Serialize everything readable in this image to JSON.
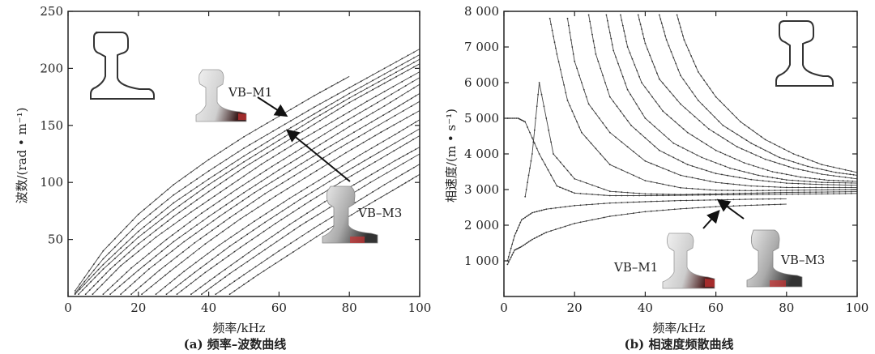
{
  "chart_data": [
    {
      "type": "scatter",
      "panel_label": "(a) 频率–波数曲线",
      "xlabel": "频率/kHz",
      "ylabel": "波数/(rad • m⁻¹)",
      "xlim": [
        0,
        100
      ],
      "ylim": [
        0,
        250
      ],
      "xticks": [
        "0",
        "20",
        "40",
        "60",
        "80",
        "100"
      ],
      "yticks": [
        "50",
        "100",
        "150",
        "200",
        "250"
      ],
      "xtick_values": [
        0,
        20,
        40,
        60,
        80,
        100
      ],
      "ytick_values": [
        50,
        100,
        150,
        200,
        250
      ],
      "grid": false,
      "annotations": [
        "VB–M1",
        "VB–M3"
      ],
      "annotation_points": [
        [
          62,
          162
        ],
        [
          63,
          146
        ]
      ],
      "series": [
        {
          "x": [
            2,
            10,
            20,
            30,
            40,
            50,
            60,
            70,
            80
          ],
          "y": [
            5,
            40,
            72,
            98,
            120,
            140,
            158,
            176,
            193
          ]
        },
        {
          "x": [
            2,
            10,
            20,
            30,
            40,
            50,
            60,
            70,
            80,
            90,
            100
          ],
          "y": [
            3,
            33,
            64,
            89,
            110,
            130,
            148,
            166,
            183,
            200,
            217
          ]
        },
        {
          "x": [
            2,
            10,
            20,
            30,
            40,
            50,
            60,
            70,
            80,
            90,
            100
          ],
          "y": [
            2,
            28,
            57,
            82,
            103,
            123,
            142,
            160,
            178,
            195,
            212
          ]
        },
        {
          "x": [
            3,
            10,
            20,
            30,
            40,
            50,
            60,
            70,
            80,
            90,
            100
          ],
          "y": [
            2,
            24,
            52,
            76,
            98,
            118,
            137,
            156,
            174,
            191,
            208
          ]
        },
        {
          "x": [
            5,
            12,
            20,
            30,
            40,
            50,
            60,
            70,
            80,
            90,
            100
          ],
          "y": [
            2,
            24,
            46,
            70,
            92,
            113,
            132,
            151,
            170,
            187,
            204
          ]
        },
        {
          "x": [
            7,
            15,
            25,
            35,
            45,
            55,
            65,
            75,
            85,
            100
          ],
          "y": [
            2,
            27,
            52,
            74,
            95,
            116,
            135,
            153,
            171,
            197
          ]
        },
        {
          "x": [
            10,
            18,
            28,
            38,
            48,
            58,
            68,
            78,
            88,
            100
          ],
          "y": [
            2,
            25,
            50,
            73,
            94,
            114,
            133,
            152,
            170,
            192
          ]
        },
        {
          "x": [
            12,
            20,
            30,
            40,
            50,
            60,
            70,
            80,
            90,
            100
          ],
          "y": [
            2,
            23,
            48,
            70,
            91,
            111,
            130,
            149,
            167,
            186
          ]
        },
        {
          "x": [
            15,
            23,
            33,
            43,
            53,
            63,
            73,
            83,
            93,
            100
          ],
          "y": [
            2,
            24,
            48,
            70,
            91,
            110,
            129,
            147,
            165,
            178
          ]
        },
        {
          "x": [
            18,
            26,
            36,
            46,
            56,
            66,
            76,
            86,
            100
          ],
          "y": [
            2,
            23,
            47,
            69,
            90,
            109,
            128,
            146,
            171
          ]
        },
        {
          "x": [
            21,
            29,
            39,
            49,
            59,
            69,
            79,
            89,
            100
          ],
          "y": [
            2,
            22,
            46,
            68,
            88,
            107,
            126,
            144,
            163
          ]
        },
        {
          "x": [
            25,
            33,
            43,
            53,
            63,
            73,
            83,
            93,
            100
          ],
          "y": [
            2,
            22,
            45,
            66,
            86,
            105,
            124,
            142,
            155
          ]
        },
        {
          "x": [
            28,
            36,
            46,
            56,
            66,
            76,
            86,
            100
          ],
          "y": [
            2,
            21,
            44,
            65,
            85,
            104,
            122,
            147
          ]
        },
        {
          "x": [
            31,
            39,
            49,
            59,
            69,
            79,
            89,
            100
          ],
          "y": [
            2,
            21,
            43,
            64,
            84,
            103,
            121,
            141
          ]
        },
        {
          "x": [
            35,
            43,
            53,
            63,
            73,
            83,
            93,
            100
          ],
          "y": [
            2,
            20,
            42,
            63,
            83,
            101,
            119,
            131
          ]
        },
        {
          "x": [
            38,
            46,
            56,
            66,
            76,
            86,
            100
          ],
          "y": [
            2,
            20,
            41,
            62,
            81,
            100,
            125
          ]
        },
        {
          "x": [
            42,
            50,
            60,
            70,
            80,
            90,
            100
          ],
          "y": [
            2,
            19,
            40,
            60,
            79,
            98,
            116
          ]
        },
        {
          "x": [
            46,
            54,
            64,
            74,
            84,
            94,
            100
          ],
          "y": [
            2,
            19,
            39,
            59,
            78,
            96,
            107
          ]
        }
      ]
    },
    {
      "type": "scatter",
      "panel_label": "(b) 相速度频散曲线",
      "xlabel": "频率/kHz",
      "ylabel": "相速度/(m • s⁻¹)",
      "xlim": [
        0,
        100
      ],
      "ylim": [
        0,
        8000
      ],
      "xticks": [
        "0",
        "20",
        "40",
        "60",
        "80",
        "100"
      ],
      "yticks": [
        "1 000",
        "2 000",
        "3 000",
        "4 000",
        "5 000",
        "6 000",
        "7 000",
        "8 000"
      ],
      "xtick_values": [
        0,
        20,
        40,
        60,
        80,
        100
      ],
      "ytick_values": [
        1000,
        2000,
        3000,
        4000,
        5000,
        6000,
        7000,
        8000
      ],
      "grid": false,
      "annotations": [
        "VB–M1",
        "VB–M3"
      ],
      "annotation_points": [
        [
          62,
          2600
        ],
        [
          57,
          2850
        ]
      ],
      "series": [
        {
          "x": [
            1,
            3,
            5,
            8,
            12,
            20,
            30,
            40,
            50,
            60,
            70,
            80
          ],
          "y": [
            900,
            1300,
            1400,
            1600,
            1800,
            2050,
            2250,
            2380,
            2460,
            2520,
            2560,
            2590
          ]
        },
        {
          "x": [
            1,
            3,
            5,
            8,
            12,
            20,
            30,
            40,
            50,
            60,
            70,
            80
          ],
          "y": [
            1000,
            1700,
            2150,
            2350,
            2450,
            2550,
            2620,
            2660,
            2690,
            2710,
            2730,
            2740
          ]
        },
        {
          "x": [
            1,
            4,
            6,
            10,
            15,
            20,
            30,
            40,
            50,
            60,
            70,
            80,
            90,
            100
          ],
          "y": [
            5000,
            5000,
            4900,
            4000,
            3100,
            2900,
            2830,
            2830,
            2840,
            2850,
            2860,
            2870,
            2880,
            2890
          ]
        },
        {
          "x": [
            6,
            8,
            10,
            14,
            20,
            30,
            40,
            50,
            60,
            70,
            80,
            90,
            100
          ],
          "y": [
            2800,
            4000,
            6000,
            4000,
            3300,
            2950,
            2880,
            2860,
            2880,
            2900,
            2920,
            2930,
            2940
          ]
        },
        {
          "x": [
            13,
            15,
            18,
            22,
            30,
            40,
            50,
            60,
            70,
            80,
            90,
            100
          ],
          "y": [
            7800,
            6800,
            5500,
            4600,
            3700,
            3250,
            3050,
            2980,
            2970,
            2980,
            2990,
            3000
          ]
        },
        {
          "x": [
            18,
            20,
            24,
            30,
            40,
            50,
            60,
            70,
            80,
            90,
            100
          ],
          "y": [
            7800,
            6600,
            5400,
            4600,
            3800,
            3400,
            3200,
            3100,
            3060,
            3060,
            3060
          ]
        },
        {
          "x": [
            24,
            26,
            30,
            36,
            44,
            52,
            60,
            70,
            80,
            90,
            100
          ],
          "y": [
            7900,
            6800,
            5600,
            4800,
            4100,
            3700,
            3450,
            3280,
            3180,
            3140,
            3120
          ]
        },
        {
          "x": [
            29,
            31,
            35,
            40,
            48,
            56,
            64,
            72,
            80,
            90,
            100
          ],
          "y": [
            7900,
            6900,
            5800,
            5000,
            4300,
            3900,
            3600,
            3400,
            3270,
            3200,
            3180
          ]
        },
        {
          "x": [
            33,
            35,
            39,
            45,
            52,
            60,
            68,
            76,
            84,
            92,
            100
          ],
          "y": [
            7900,
            7000,
            6000,
            5200,
            4600,
            4100,
            3750,
            3500,
            3350,
            3260,
            3230
          ]
        },
        {
          "x": [
            38,
            40,
            44,
            50,
            58,
            66,
            74,
            82,
            90,
            100
          ],
          "y": [
            7900,
            7100,
            6100,
            5400,
            4700,
            4200,
            3850,
            3600,
            3430,
            3300
          ]
        },
        {
          "x": [
            44,
            46,
            50,
            55,
            62,
            70,
            78,
            86,
            94,
            100
          ],
          "y": [
            7900,
            7200,
            6200,
            5500,
            4800,
            4300,
            3900,
            3650,
            3480,
            3400
          ]
        },
        {
          "x": [
            49,
            51,
            55,
            60,
            67,
            74,
            82,
            90,
            100
          ],
          "y": [
            7900,
            7200,
            6300,
            5600,
            4900,
            4400,
            4000,
            3700,
            3480
          ]
        }
      ]
    }
  ]
}
